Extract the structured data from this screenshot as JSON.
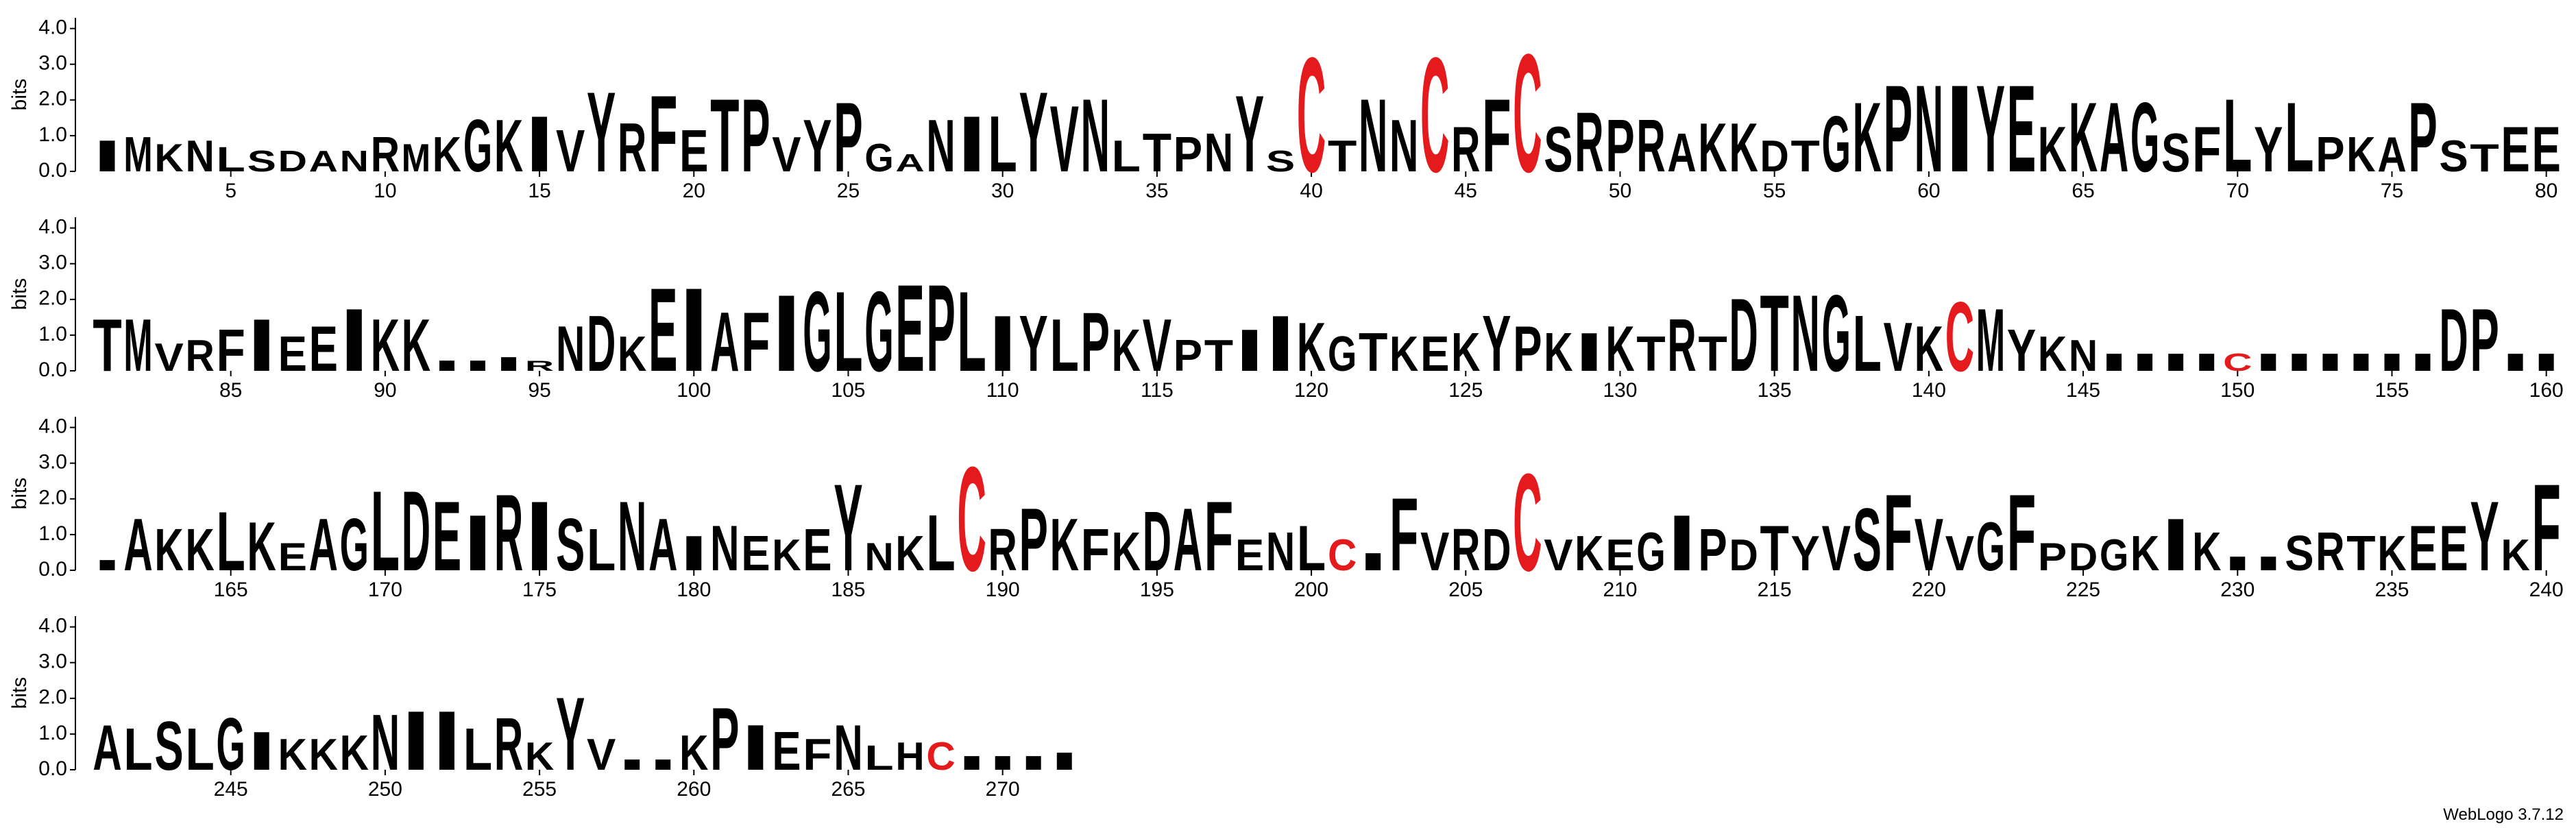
{
  "chart_data": [
    {
      "type": "logo",
      "y_label": "bits",
      "color": "#000000",
      "colors": {
        "C": "#e41a1c"
      },
      "xlim": [
        0.5,
        80.5
      ],
      "ylim": [
        0,
        4.3
      ],
      "yticks": [
        {
          "value": 0,
          "label": "0.0"
        },
        {
          "value": 1,
          "label": "1.0"
        },
        {
          "value": 2,
          "label": "2.0"
        },
        {
          "value": 3,
          "label": "3.0"
        },
        {
          "value": 4,
          "label": "4.0"
        }
      ],
      "xticks": [
        5,
        10,
        15,
        20,
        25,
        30,
        35,
        40,
        45,
        50,
        55,
        60,
        65,
        70,
        75,
        80
      ],
      "x": [
        1,
        2,
        3,
        4,
        5,
        6,
        7,
        8,
        9,
        10,
        11,
        12,
        13,
        14,
        15,
        16,
        17,
        18,
        19,
        20,
        21,
        22,
        23,
        24,
        25,
        26,
        27,
        28,
        29,
        30,
        31,
        32,
        33,
        34,
        35,
        36,
        37,
        38,
        39,
        40,
        41,
        42,
        43,
        44,
        45,
        46,
        47,
        48,
        49,
        50,
        51,
        52,
        53,
        54,
        55,
        56,
        57,
        58,
        59,
        60,
        61,
        62,
        63,
        64,
        65,
        66,
        67,
        68,
        69,
        70,
        71,
        72,
        73,
        74,
        75,
        76,
        77,
        78,
        79,
        80
      ],
      "letters": [
        "I",
        "M",
        "K",
        "N",
        "L",
        "S",
        "D",
        "A",
        "N",
        "R",
        "M",
        "K",
        "G",
        "K",
        "I",
        "V",
        "Y",
        "R",
        "F",
        "E",
        "T",
        "P",
        "V",
        "Y",
        "P",
        "G",
        "A",
        "N",
        "I",
        "L",
        "Y",
        "V",
        "N",
        "L",
        "T",
        "P",
        "N",
        "Y",
        "S",
        "C",
        "T",
        "N",
        "N",
        "C",
        "R",
        "F",
        "C",
        "S",
        "R",
        "P",
        "R",
        "A",
        "K",
        "K",
        "D",
        "T",
        "G",
        "K",
        "P",
        "N",
        "I",
        "Y",
        "E",
        "K",
        "K",
        "A",
        "G",
        "S",
        "F",
        "L",
        "Y",
        "L",
        "P",
        "K",
        "A",
        "P",
        "S",
        "T",
        "E",
        "E"
      ],
      "values": [
        0.9,
        1.0,
        0.8,
        0.9,
        0.7,
        0.6,
        0.6,
        0.6,
        0.6,
        1.0,
        0.8,
        1.0,
        1.5,
        1.5,
        1.6,
        1.2,
        2.3,
        1.4,
        2.2,
        1.2,
        2.1,
        2.1,
        1.0,
        1.5,
        2.0,
        0.8,
        0.5,
        1.5,
        1.6,
        1.6,
        2.3,
        1.9,
        2.1,
        0.9,
        1.1,
        1.0,
        1.1,
        2.2,
        0.6,
        3.3,
        0.9,
        2.1,
        1.5,
        3.3,
        1.3,
        2.1,
        3.4,
        1.3,
        1.7,
        1.5,
        1.5,
        1.1,
        1.4,
        1.4,
        0.9,
        0.9,
        1.6,
        2.0,
        2.5,
        2.5,
        2.5,
        2.5,
        2.5,
        1.3,
        2.0,
        2.0,
        2.0,
        1.1,
        1.3,
        2.1,
        1.3,
        2.0,
        1.0,
        1.0,
        1.0,
        2.0,
        0.9,
        0.8,
        1.3,
        1.3
      ]
    },
    {
      "type": "logo",
      "y_label": "bits",
      "color": "#000000",
      "colors": {
        "C": "#e41a1c"
      },
      "xlim": [
        80.5,
        160.5
      ],
      "ylim": [
        0,
        4.3
      ],
      "yticks": [
        {
          "value": 0,
          "label": "0.0"
        },
        {
          "value": 1,
          "label": "1.0"
        },
        {
          "value": 2,
          "label": "2.0"
        },
        {
          "value": 3,
          "label": "3.0"
        },
        {
          "value": 4,
          "label": "4.0"
        }
      ],
      "xticks": [
        85,
        90,
        95,
        100,
        105,
        110,
        115,
        120,
        125,
        130,
        135,
        140,
        145,
        150,
        155,
        160
      ],
      "x": [
        81,
        82,
        83,
        84,
        85,
        86,
        87,
        88,
        89,
        90,
        91,
        92,
        93,
        94,
        95,
        96,
        97,
        98,
        99,
        100,
        101,
        102,
        103,
        104,
        105,
        106,
        107,
        108,
        109,
        110,
        111,
        112,
        113,
        114,
        115,
        116,
        117,
        118,
        119,
        120,
        121,
        122,
        123,
        124,
        125,
        126,
        127,
        128,
        129,
        130,
        131,
        132,
        133,
        134,
        135,
        136,
        137,
        138,
        139,
        140,
        141,
        142,
        143,
        144,
        145,
        146,
        147,
        148,
        149,
        150,
        151,
        152,
        153,
        154,
        155,
        156,
        157,
        158,
        159,
        160
      ],
      "letters": [
        "T",
        "M",
        "V",
        "R",
        "F",
        "I",
        "E",
        "E",
        "I",
        "K",
        "K",
        "I",
        "I",
        "I",
        "R",
        "N",
        "D",
        "K",
        "E",
        "I",
        "A",
        "F",
        "I",
        "G",
        "L",
        "G",
        "E",
        "P",
        "L",
        "I",
        "Y",
        "L",
        "P",
        "K",
        "V",
        "P",
        "T",
        "I",
        "I",
        "K",
        "G",
        "T",
        "K",
        "E",
        "K",
        "Y",
        "P",
        "K",
        "I",
        "K",
        "T",
        "R",
        "T",
        "D",
        "T",
        "N",
        "G",
        "L",
        "V",
        "K",
        "C",
        "M",
        "Y",
        "K",
        "N",
        "I",
        "I",
        "I",
        "I",
        "C",
        "I",
        "I",
        "I",
        "I",
        "I",
        "I",
        "D",
        "P",
        "I",
        "I"
      ],
      "values": [
        1.5,
        1.5,
        0.8,
        0.9,
        1.2,
        1.5,
        1.0,
        1.3,
        1.8,
        1.5,
        1.5,
        0.3,
        0.3,
        0.4,
        0.3,
        1.3,
        1.6,
        1.0,
        2.4,
        2.4,
        1.7,
        1.7,
        2.2,
        2.3,
        2.3,
        2.3,
        2.5,
        2.5,
        2.3,
        1.6,
        1.6,
        1.5,
        1.7,
        1.2,
        1.5,
        0.9,
        0.9,
        1.2,
        1.6,
        1.4,
        1.0,
        1.1,
        1.0,
        1.0,
        1.1,
        1.6,
        1.3,
        1.1,
        1.1,
        1.3,
        1.0,
        1.5,
        1.0,
        2.1,
        2.2,
        2.2,
        2.2,
        1.6,
        1.4,
        1.3,
        2.0,
        1.8,
        1.2,
        1.0,
        0.9,
        0.5,
        0.5,
        0.5,
        0.5,
        0.5,
        0.5,
        0.5,
        0.5,
        0.5,
        0.5,
        0.5,
        1.8,
        1.8,
        0.5,
        0.5
      ]
    },
    {
      "type": "logo",
      "y_label": "bits",
      "color": "#000000",
      "colors": {
        "C": "#e41a1c"
      },
      "xlim": [
        160.5,
        240.5
      ],
      "ylim": [
        0,
        4.3
      ],
      "yticks": [
        {
          "value": 0,
          "label": "0.0"
        },
        {
          "value": 1,
          "label": "1.0"
        },
        {
          "value": 2,
          "label": "2.0"
        },
        {
          "value": 3,
          "label": "3.0"
        },
        {
          "value": 4,
          "label": "4.0"
        }
      ],
      "xticks": [
        165,
        170,
        175,
        180,
        185,
        190,
        195,
        200,
        205,
        210,
        215,
        220,
        225,
        230,
        235,
        240
      ],
      "x": [
        161,
        162,
        163,
        164,
        165,
        166,
        167,
        168,
        169,
        170,
        171,
        172,
        173,
        174,
        175,
        176,
        177,
        178,
        179,
        180,
        181,
        182,
        183,
        184,
        185,
        186,
        187,
        188,
        189,
        190,
        191,
        192,
        193,
        194,
        195,
        196,
        197,
        198,
        199,
        200,
        201,
        202,
        203,
        204,
        205,
        206,
        207,
        208,
        209,
        210,
        211,
        212,
        213,
        214,
        215,
        216,
        217,
        218,
        219,
        220,
        221,
        222,
        223,
        224,
        225,
        226,
        227,
        228,
        229,
        230,
        231,
        232,
        233,
        234,
        235,
        236,
        237,
        238,
        239,
        240
      ],
      "letters": [
        "I",
        "A",
        "K",
        "K",
        "L",
        "K",
        "E",
        "A",
        "G",
        "L",
        "D",
        "E",
        "I",
        "R",
        "I",
        "S",
        "L",
        "N",
        "A",
        "I",
        "N",
        "E",
        "K",
        "E",
        "Y",
        "N",
        "K",
        "L",
        "C",
        "R",
        "P",
        "K",
        "F",
        "K",
        "D",
        "A",
        "F",
        "E",
        "N",
        "L",
        "C",
        "I",
        "F",
        "V",
        "R",
        "D",
        "C",
        "V",
        "K",
        "E",
        "G",
        "I",
        "P",
        "D",
        "T",
        "Y",
        "V",
        "S",
        "F",
        "V",
        "V",
        "G",
        "F",
        "P",
        "D",
        "G",
        "K",
        "I",
        "K",
        "I",
        "I",
        "S",
        "R",
        "T",
        "K",
        "E",
        "E",
        "Y",
        "K",
        "F"
      ],
      "values": [
        0.3,
        1.5,
        1.2,
        1.2,
        1.7,
        1.4,
        0.8,
        1.5,
        1.5,
        2.3,
        2.3,
        2.0,
        1.6,
        2.2,
        2.0,
        1.5,
        1.2,
        2.0,
        1.5,
        1.0,
        1.3,
        1.0,
        0.9,
        1.2,
        2.5,
        0.8,
        1.0,
        1.6,
        3.0,
        1.2,
        1.8,
        1.5,
        1.2,
        1.1,
        1.7,
        1.8,
        2.0,
        0.9,
        1.1,
        1.3,
        0.9,
        0.5,
        2.1,
        1.1,
        1.2,
        1.2,
        2.8,
        0.9,
        1.0,
        0.9,
        1.1,
        1.6,
        1.2,
        0.9,
        1.3,
        1.0,
        1.3,
        1.8,
        2.2,
        1.5,
        1.0,
        1.4,
        2.2,
        0.8,
        0.8,
        0.9,
        1.0,
        1.5,
        1.1,
        0.4,
        0.4,
        1.0,
        1.1,
        1.0,
        1.0,
        1.3,
        1.3,
        2.0,
        0.9,
        2.5
      ]
    },
    {
      "type": "logo",
      "y_label": "bits",
      "color": "#000000",
      "colors": {
        "C": "#e41a1c"
      },
      "xlim": [
        240.5,
        272.5
      ],
      "ylim": [
        0,
        4.3
      ],
      "yticks": [
        {
          "value": 0,
          "label": "0.0"
        },
        {
          "value": 1,
          "label": "1.0"
        },
        {
          "value": 2,
          "label": "2.0"
        },
        {
          "value": 3,
          "label": "3.0"
        },
        {
          "value": 4,
          "label": "4.0"
        }
      ],
      "xticks": [
        245,
        250,
        255,
        260,
        265,
        270
      ],
      "x": [
        241,
        242,
        243,
        244,
        245,
        246,
        247,
        248,
        249,
        250,
        251,
        252,
        253,
        254,
        255,
        256,
        257,
        258,
        259,
        260,
        261,
        262,
        263,
        264,
        265,
        266,
        267,
        268,
        269,
        270,
        271,
        272
      ],
      "letters": [
        "A",
        "L",
        "S",
        "L",
        "G",
        "I",
        "K",
        "K",
        "K",
        "N",
        "I",
        "I",
        "L",
        "R",
        "K",
        "Y",
        "V",
        "I",
        "I",
        "K",
        "P",
        "I",
        "E",
        "F",
        "N",
        "L",
        "H",
        "C",
        "I",
        "I",
        "I",
        "I"
      ],
      "values": [
        1.3,
        1.2,
        1.4,
        1.2,
        1.5,
        1.1,
        0.9,
        0.9,
        1.0,
        1.6,
        1.7,
        1.7,
        1.2,
        1.5,
        0.8,
        2.1,
        0.9,
        0.3,
        0.3,
        1.0,
        1.8,
        1.3,
        1.1,
        0.9,
        1.3,
        0.7,
        0.8,
        0.8,
        0.4,
        0.4,
        0.4,
        0.5
      ]
    }
  ],
  "footer": "WebLogo 3.7.12"
}
